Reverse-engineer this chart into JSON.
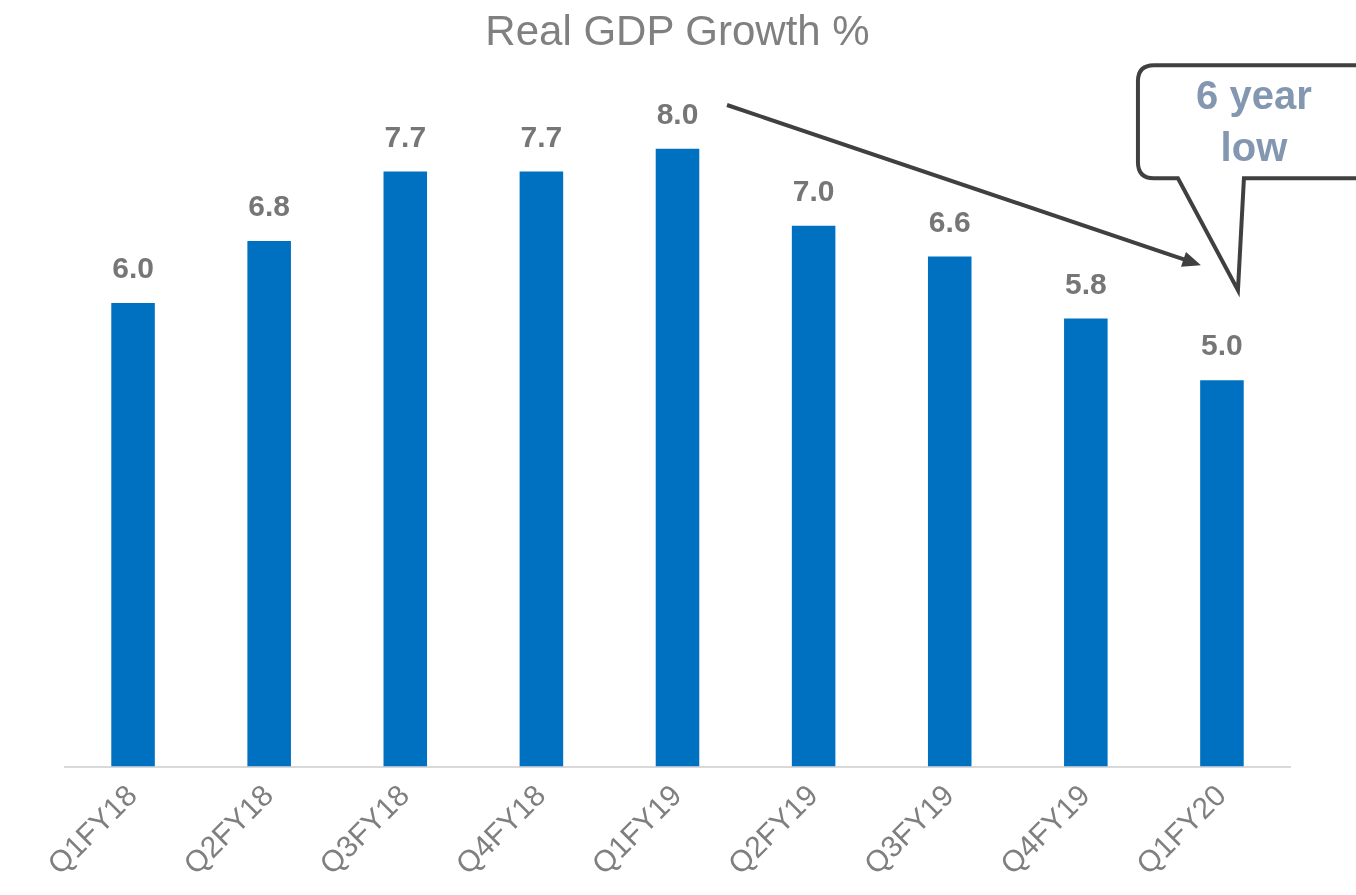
{
  "chart_data": {
    "type": "bar",
    "title": "Real GDP Growth %",
    "categories": [
      "Q1FY18",
      "Q2FY18",
      "Q3FY18",
      "Q4FY18",
      "Q1FY19",
      "Q2FY19",
      "Q3FY19",
      "Q4FY19",
      "Q1FY20"
    ],
    "values": [
      6.0,
      6.8,
      7.7,
      7.7,
      8.0,
      7.0,
      6.6,
      5.8,
      5.0
    ],
    "color": "#0070c0",
    "value_labels": [
      "6.0",
      "6.8",
      "7.7",
      "7.7",
      "8.0",
      "7.0",
      "6.6",
      "5.8",
      "5.0"
    ],
    "annotations": [
      "6 year low"
    ]
  }
}
